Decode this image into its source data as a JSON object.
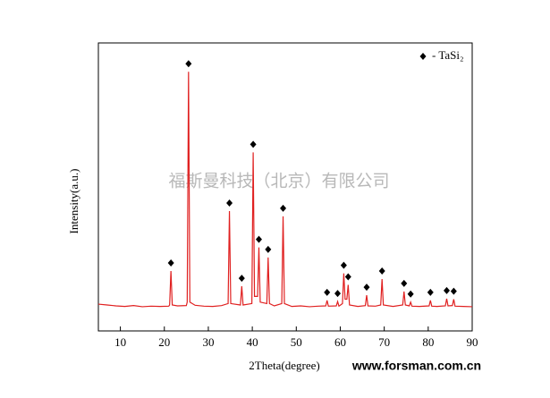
{
  "chart_data": {
    "type": "line",
    "x_label": "2Theta(degree)",
    "y_label": "Intensity(a.u.)",
    "watermark": "福斯曼科技（北京）有限公司",
    "website": "www.forsman.com.cn",
    "xlim": [
      5,
      90
    ],
    "xticks": [
      10,
      20,
      30,
      40,
      50,
      60,
      70,
      80,
      90
    ],
    "ylim": [
      0,
      100
    ],
    "legend": "upper right",
    "series": [
      {
        "color": "#e02020",
        "x": [
          5,
          7,
          9,
          11,
          13,
          15,
          17,
          19,
          21,
          21.2,
          21.5,
          21.8,
          23,
          25,
          25.2,
          25.5,
          25.8,
          27,
          29,
          31,
          33,
          34.5,
          34.8,
          35.1,
          37.3,
          37.6,
          37.9,
          39.9,
          40.2,
          40.5,
          41.2,
          41.5,
          41.8,
          43.3,
          43.6,
          43.9,
          45,
          46.7,
          47,
          47.3,
          49,
          51,
          53,
          55,
          56.7,
          57,
          57.3,
          59.1,
          59.4,
          59.7,
          60.5,
          60.8,
          61.1,
          61.5,
          61.8,
          62.1,
          64,
          65.7,
          66,
          66.3,
          68,
          69.2,
          69.5,
          69.8,
          72,
          74.2,
          74.5,
          74.8,
          75.7,
          76,
          76.3,
          78,
          80.2,
          80.5,
          80.8,
          82,
          83.9,
          84.2,
          84.5,
          85.5,
          85.8,
          86.1,
          88,
          90
        ],
        "y": [
          9.3,
          9.0,
          8.7,
          8.5,
          8.8,
          8.4,
          8.6,
          8.5,
          8.6,
          9,
          20.8,
          9,
          8.7,
          8.8,
          10,
          90,
          10,
          8.9,
          8.6,
          8.5,
          8.8,
          9.5,
          41.6,
          9.5,
          9,
          15.5,
          9,
          9.5,
          62,
          12,
          12,
          29,
          10,
          9.5,
          25.5,
          9.5,
          8.7,
          9.5,
          39.8,
          9.5,
          8.5,
          8.7,
          8.4,
          8.6,
          8.7,
          10.6,
          8.6,
          8.7,
          10.2,
          8.6,
          9.5,
          20,
          11,
          11,
          16,
          9,
          8.5,
          8.8,
          12.4,
          8.7,
          8.6,
          9,
          18,
          9,
          8.5,
          9,
          13.7,
          9,
          8.7,
          10,
          8.6,
          8.5,
          8.7,
          10.6,
          8.6,
          8.5,
          8.7,
          11.2,
          8.7,
          8.8,
          11,
          8.6,
          8.5,
          8.4
        ]
      },
      {
        "type": "scatter",
        "name": "- TaSi₂",
        "color": "#000000",
        "x": [
          21.5,
          25.5,
          34.8,
          37.6,
          40.2,
          41.5,
          43.6,
          47,
          57,
          59.4,
          60.8,
          61.8,
          66,
          69.5,
          74.5,
          76,
          80.5,
          84.2,
          85.8
        ],
        "y": [
          20.8,
          90,
          41.6,
          15.5,
          62,
          29,
          25.5,
          39.8,
          10.6,
          10.2,
          20,
          16,
          12.4,
          18,
          13.7,
          10,
          10.6,
          11.2,
          11
        ]
      }
    ]
  }
}
